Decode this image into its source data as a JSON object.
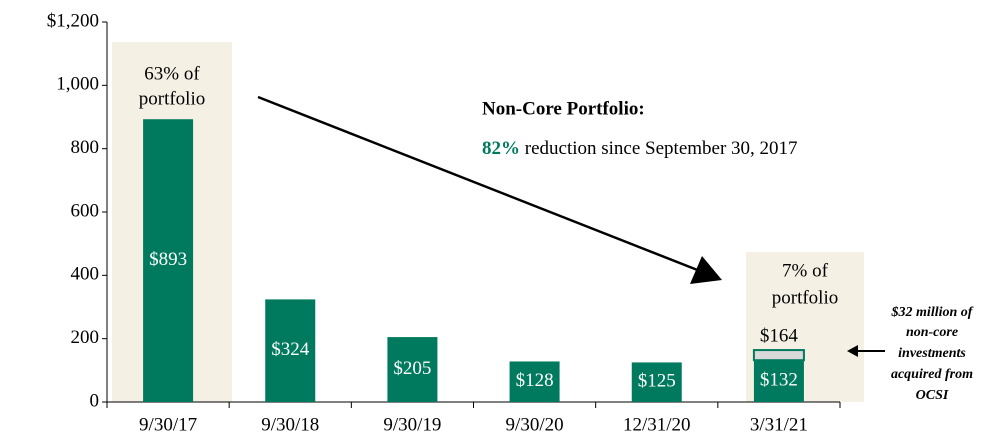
{
  "chart_data": {
    "type": "bar",
    "categories": [
      "9/30/17",
      "9/30/18",
      "9/30/19",
      "9/30/20",
      "12/31/20",
      "3/31/21"
    ],
    "series": [
      {
        "color": "#007a5e",
        "values": [
          893,
          324,
          205,
          128,
          125,
          132
        ],
        "value_labels": [
          "$893",
          "$324",
          "$205",
          "$128",
          "$125",
          "$132"
        ]
      },
      {
        "color": "#d9d9d9",
        "values": [
          null,
          null,
          null,
          null,
          null,
          32
        ]
      }
    ],
    "totals": [
      null,
      null,
      null,
      null,
      null,
      164
    ],
    "total_labels": [
      null,
      null,
      null,
      null,
      null,
      "$164"
    ],
    "ylim": [
      0,
      1200
    ],
    "yticks": [
      0,
      200,
      400,
      600,
      800,
      {
        "value": 1000,
        "label": "1,000"
      },
      {
        "value": 1200,
        "label": "$1,200"
      }
    ],
    "annotations": {
      "first_share": [
        "63% of",
        "portfolio"
      ],
      "last_share": [
        "7% of",
        "portfolio"
      ],
      "heading": "Non-Core Portfolio:",
      "highlight": "82%",
      "text": "reduction since September 30, 2017",
      "note": [
        "$32 million of",
        "non-core",
        "investments",
        "acquired from",
        "OCSI"
      ]
    }
  }
}
